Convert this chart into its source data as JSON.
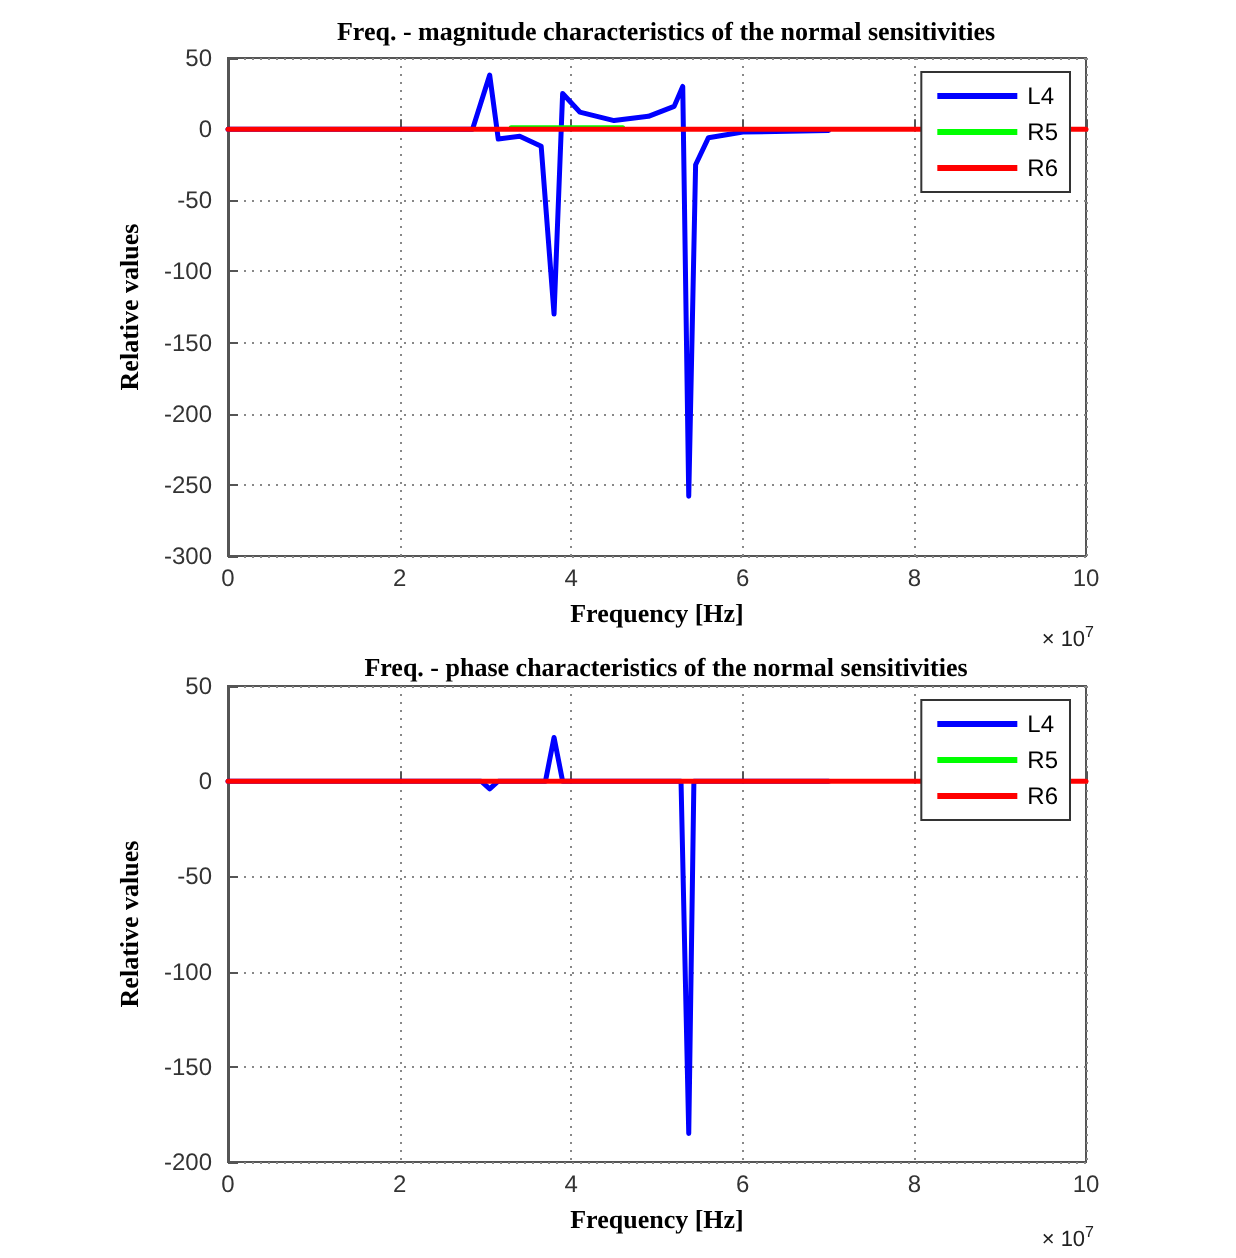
{
  "chart_data": [
    {
      "type": "line",
      "title": "Freq. - magnitude characteristics of the normal sensitivities",
      "xlabel": "Frequency [Hz]",
      "ylabel": "Relative values",
      "annotations": [
        "× 10$^{7}$"
      ],
      "xlim": [
        0,
        10
      ],
      "xticks": [
        0,
        2,
        4,
        6,
        8,
        10
      ],
      "ylim": [
        -300,
        50
      ],
      "yticks": [
        -300,
        -250,
        -200,
        -150,
        -100,
        -50,
        0,
        50
      ],
      "grid": true,
      "legend": "top right",
      "marker": "none",
      "line_style": "solid",
      "series": [
        {
          "name": "L4",
          "color": "#0000ff",
          "x": [
            0,
            2.85,
            3.05,
            3.15,
            3.4,
            3.65,
            3.8,
            3.9,
            4.1,
            4.5,
            4.9,
            5.2,
            5.3,
            5.37,
            5.45,
            5.6,
            6,
            7
          ],
          "values": [
            0,
            0,
            38,
            -7,
            -5,
            -12,
            -130,
            25,
            12,
            6,
            9,
            16,
            30,
            -258,
            -25,
            -6,
            -2,
            -1
          ]
        },
        {
          "name": "R5",
          "color": "#00ff00",
          "x": [
            3.3,
            4.6
          ],
          "values": [
            1,
            1
          ]
        },
        {
          "name": "R6",
          "color": "#ff0000",
          "x": [
            0,
            10
          ],
          "values": [
            0,
            0
          ]
        }
      ]
    },
    {
      "type": "line",
      "title": "Freq. - phase characteristics of the normal sensitivities",
      "xlabel": "Frequency [Hz]",
      "ylabel": "Relative values",
      "annotations": [
        "× 10$^{7}$"
      ],
      "xlim": [
        0,
        10
      ],
      "xticks": [
        0,
        2,
        4,
        6,
        8,
        10
      ],
      "ylim": [
        -200,
        50
      ],
      "yticks": [
        -200,
        -150,
        -100,
        -50,
        0,
        50
      ],
      "grid": true,
      "legend": "top right",
      "marker": "none",
      "line_style": "solid",
      "series": [
        {
          "name": "L4",
          "color": "#0000ff",
          "x": [
            0,
            2.95,
            3.05,
            3.15,
            3.7,
            3.8,
            3.9,
            5.28,
            5.37,
            5.43,
            7
          ],
          "values": [
            0,
            0,
            -4,
            0,
            0,
            23,
            0,
            0,
            -185,
            0,
            0
          ]
        },
        {
          "name": "R5",
          "color": "#00ff00"
        },
        {
          "name": "R6",
          "color": "#ff0000",
          "x": [
            0,
            10
          ],
          "values": [
            0,
            0
          ]
        }
      ]
    }
  ]
}
